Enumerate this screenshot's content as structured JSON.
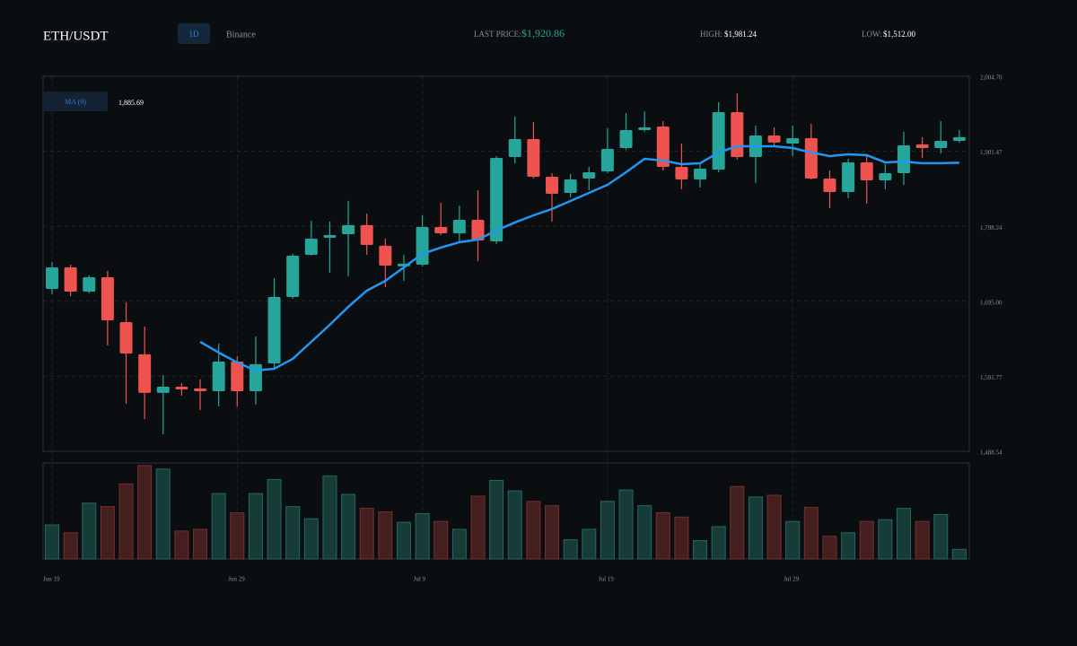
{
  "header": {
    "symbol": "ETH/USDT",
    "interval": "1D",
    "exchange": "Binance",
    "last_price_label": "LAST PRICE:",
    "last_price": "$1,920.86",
    "high_label": "HIGH:",
    "high": "$1,981.24",
    "low_label": "LOW:",
    "low": "$1,512.00"
  },
  "chart_data": {
    "type": "candlestick",
    "categories": [
      "Jun 19",
      null,
      null,
      null,
      null,
      null,
      null,
      null,
      null,
      null,
      "Jun 29",
      null,
      null,
      null,
      null,
      null,
      null,
      null,
      null,
      null,
      "Jul 9",
      null,
      null,
      null,
      null,
      null,
      null,
      null,
      null,
      null,
      "Jul 19",
      null,
      null,
      null,
      null,
      null,
      null,
      null,
      null,
      null,
      "Jul 29",
      null,
      null,
      null,
      null,
      null,
      null,
      null,
      null,
      null
    ],
    "open": [
      1712.1,
      1741.7,
      1708.4,
      1728.1,
      1666.4,
      1622.0,
      1568.9,
      1577.5,
      1575.0,
      1571.3,
      1612.1,
      1571.3,
      1609.6,
      1701.0,
      1759.0,
      1782.5,
      1787.4,
      1799.8,
      1771.4,
      1743.0,
      1745.4,
      1797.3,
      1788.6,
      1807.2,
      1777.5,
      1893.6,
      1918.3,
      1866.4,
      1844.2,
      1863.9,
      1873.8,
      1905.9,
      1930.6,
      1935.5,
      1880.0,
      1862.7,
      1876.3,
      1955.3,
      1893.6,
      1923.2,
      1912.1,
      1919.5,
      1863.9,
      1845.4,
      1886.2,
      1861.5,
      1871.4,
      1910.9,
      1905.9,
      1915.8
    ],
    "high": [
      1749.1,
      1745.4,
      1730.6,
      1736.8,
      1693.6,
      1660.2,
      1593.6,
      1582.4,
      1587.4,
      1636.8,
      1619.5,
      1646.6,
      1726.9,
      1760.3,
      1805.9,
      1804.7,
      1833.1,
      1815.8,
      1781.2,
      1759.0,
      1813.3,
      1830.6,
      1826.9,
      1847.9,
      1894.8,
      1949.2,
      1941.7,
      1871.4,
      1870.1,
      1880.0,
      1933.1,
      1954.1,
      1956.6,
      1943.0,
      1912.1,
      1883.7,
      1968.9,
      1981.24,
      1936.8,
      1934.3,
      1936.8,
      1939.3,
      1875.1,
      1891.1,
      1894.8,
      1883.7,
      1928.2,
      1920.8,
      1943.0,
      1930.6
    ],
    "low": [
      1704.7,
      1702.2,
      1705.9,
      1634.3,
      1554.0,
      1533.0,
      1512.0,
      1565.2,
      1545.4,
      1550.3,
      1550.3,
      1552.8,
      1603.4,
      1698.5,
      1757.8,
      1734.3,
      1729.4,
      1759.0,
      1714.5,
      1723.2,
      1743.0,
      1786.2,
      1777.5,
      1750.3,
      1773.8,
      1885.0,
      1863.9,
      1804.7,
      1838.0,
      1847.9,
      1871.4,
      1903.5,
      1928.2,
      1875.1,
      1849.2,
      1851.6,
      1872.6,
      1889.9,
      1857.8,
      1907.2,
      1894.8,
      1862.7,
      1823.2,
      1836.8,
      1829.4,
      1849.2,
      1855.3,
      1892.3,
      1898.6,
      1913.4
    ],
    "close": [
      1741.7,
      1708.4,
      1728.1,
      1668.9,
      1623.2,
      1568.9,
      1577.5,
      1573.8,
      1571.3,
      1612.1,
      1571.3,
      1608.4,
      1701.0,
      1757.8,
      1781.2,
      1786.2,
      1799.8,
      1772.6,
      1744.2,
      1746.7,
      1797.3,
      1788.6,
      1807.2,
      1778.7,
      1892.3,
      1918.3,
      1866.4,
      1842.9,
      1862.7,
      1872.6,
      1904.7,
      1930.6,
      1934.3,
      1880.0,
      1862.7,
      1877.5,
      1955.3,
      1893.6,
      1923.2,
      1913.4,
      1919.5,
      1863.9,
      1845.4,
      1886.2,
      1861.5,
      1871.4,
      1909.6,
      1905.9,
      1915.8,
      1920.86
    ],
    "up_color": "#26a69a",
    "down_color": "#ef5350",
    "ylim": [
      1488.54,
      2004.7
    ],
    "yticks": [
      {
        "value": 1488.54,
        "label": "1,488.54"
      },
      {
        "value": 1591.77,
        "label": "1,591.77"
      },
      {
        "value": 1695.0,
        "label": "1,695.00"
      },
      {
        "value": 1798.24,
        "label": "1,798.24"
      },
      {
        "value": 1901.47,
        "label": "1,901.47"
      },
      {
        "value": 2004.7,
        "label": "2,004.70"
      }
    ],
    "grid": true,
    "ma": {
      "name": "MA (9)",
      "color": "#2196f3",
      "value_label": "1,885.69",
      "values": [
        null,
        null,
        null,
        null,
        null,
        null,
        null,
        null,
        1639.2,
        1624.4,
        1610.8,
        1599.7,
        1602.2,
        1615.8,
        1639.2,
        1662.7,
        1687.4,
        1709.6,
        1723.2,
        1741.7,
        1760.3,
        1768.9,
        1776.3,
        1780.0,
        1792.4,
        1803.5,
        1813.3,
        1822.0,
        1833.1,
        1844.2,
        1855.3,
        1872.6,
        1891.1,
        1888.7,
        1883.7,
        1885.0,
        1899.8,
        1908.4,
        1908.4,
        1908.4,
        1905.9,
        1899.8,
        1894.8,
        1897.3,
        1896.1,
        1886.2,
        1887.4,
        1885.0,
        1885.0,
        1885.69
      ]
    },
    "volume": {
      "ylim": [
        0,
        110
      ],
      "values": [
        39,
        30,
        64,
        60,
        86,
        107,
        103,
        32,
        34,
        75,
        53,
        75,
        91,
        60,
        46,
        95,
        74,
        58,
        54,
        42,
        52,
        43,
        34,
        72,
        90,
        78,
        66,
        61,
        22,
        34,
        66,
        79,
        61,
        53,
        48,
        21,
        37,
        83,
        71,
        73,
        43,
        59,
        26,
        30,
        43,
        45,
        58,
        43,
        51,
        11
      ]
    }
  }
}
